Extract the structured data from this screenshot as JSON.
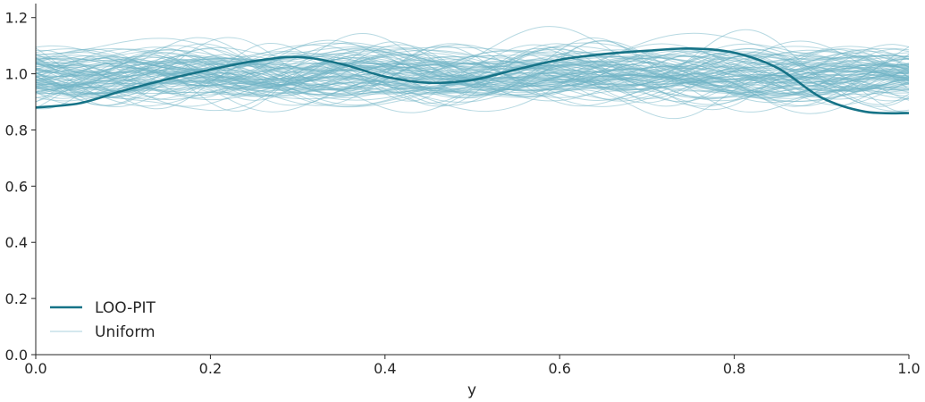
{
  "chart_data": {
    "type": "line",
    "title": "",
    "xlabel": "y",
    "ylabel": "",
    "xlim": [
      0.0,
      1.0
    ],
    "ylim": [
      0.0,
      1.25
    ],
    "xticks": [
      "0.0",
      "0.2",
      "0.4",
      "0.6",
      "0.8",
      "1.0"
    ],
    "yticks": [
      "0.0",
      "0.2",
      "0.4",
      "0.6",
      "0.8",
      "1.0",
      "1.2"
    ],
    "grid": false,
    "legend": {
      "placement": "lower-left",
      "entries": [
        "LOO-PIT",
        "Uniform"
      ]
    },
    "colors": {
      "loo_pit": "#167387",
      "uniform": "#6fb3c6",
      "axis": "#262626"
    },
    "series": [
      {
        "name": "LOO-PIT",
        "x": [
          0.0,
          0.05,
          0.1,
          0.15,
          0.2,
          0.25,
          0.3,
          0.35,
          0.4,
          0.45,
          0.5,
          0.55,
          0.6,
          0.65,
          0.7,
          0.75,
          0.8,
          0.85,
          0.9,
          0.95,
          1.0
        ],
        "y": [
          0.88,
          0.895,
          0.94,
          0.98,
          1.015,
          1.045,
          1.06,
          1.035,
          0.99,
          0.968,
          0.978,
          1.015,
          1.05,
          1.07,
          1.082,
          1.09,
          1.075,
          1.02,
          0.915,
          0.865,
          0.86
        ]
      }
    ],
    "uniform_band": {
      "name": "Uniform",
      "count": 100,
      "x_range": [
        0.0,
        1.0
      ],
      "y_range": [
        0.77,
        1.23
      ],
      "center": 1.0
    }
  }
}
